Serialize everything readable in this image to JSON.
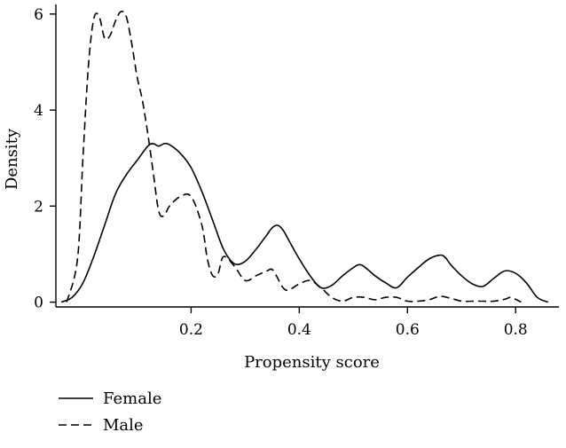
{
  "chart_data": {
    "type": "line",
    "title": "",
    "xlabel": "Propensity score",
    "ylabel": "Density",
    "xlim": [
      -0.05,
      0.88
    ],
    "ylim": [
      -0.1,
      6.2
    ],
    "x_ticks": [
      0.2,
      0.4,
      0.6,
      0.8
    ],
    "x_tick_labels": [
      "0.2",
      "0.4",
      "0.6",
      "0.8"
    ],
    "y_ticks": [
      0,
      2,
      4,
      6
    ],
    "y_tick_labels": [
      "0",
      "2",
      "4",
      "6"
    ],
    "grid": false,
    "legend_position": "bottom-left",
    "series": [
      {
        "name": "Female",
        "style": "solid",
        "color": "#000000",
        "x": [
          -0.04,
          -0.02,
          0.0,
          0.02,
          0.04,
          0.06,
          0.08,
          0.1,
          0.12,
          0.13,
          0.14,
          0.15,
          0.16,
          0.18,
          0.2,
          0.22,
          0.24,
          0.26,
          0.28,
          0.3,
          0.32,
          0.34,
          0.35,
          0.36,
          0.37,
          0.38,
          0.4,
          0.42,
          0.44,
          0.46,
          0.48,
          0.5,
          0.51,
          0.52,
          0.54,
          0.56,
          0.58,
          0.6,
          0.62,
          0.64,
          0.66,
          0.67,
          0.68,
          0.7,
          0.72,
          0.74,
          0.76,
          0.78,
          0.8,
          0.82,
          0.84,
          0.86
        ],
        "y": [
          0.0,
          0.1,
          0.4,
          0.95,
          1.6,
          2.25,
          2.65,
          2.95,
          3.25,
          3.3,
          3.25,
          3.3,
          3.28,
          3.1,
          2.8,
          2.3,
          1.7,
          1.1,
          0.8,
          0.85,
          1.1,
          1.4,
          1.55,
          1.6,
          1.5,
          1.3,
          0.9,
          0.55,
          0.3,
          0.35,
          0.55,
          0.72,
          0.78,
          0.74,
          0.55,
          0.4,
          0.3,
          0.52,
          0.72,
          0.9,
          0.98,
          0.93,
          0.78,
          0.55,
          0.38,
          0.33,
          0.5,
          0.65,
          0.6,
          0.4,
          0.1,
          0.0
        ]
      },
      {
        "name": "Male",
        "style": "dashed",
        "color": "#000000",
        "x": [
          -0.03,
          -0.01,
          0.0,
          0.01,
          0.02,
          0.03,
          0.04,
          0.05,
          0.06,
          0.07,
          0.08,
          0.09,
          0.1,
          0.11,
          0.12,
          0.13,
          0.14,
          0.15,
          0.16,
          0.18,
          0.2,
          0.22,
          0.23,
          0.24,
          0.25,
          0.26,
          0.28,
          0.3,
          0.32,
          0.34,
          0.35,
          0.36,
          0.37,
          0.38,
          0.4,
          0.42,
          0.44,
          0.46,
          0.48,
          0.5,
          0.52,
          0.54,
          0.56,
          0.58,
          0.6,
          0.62,
          0.64,
          0.66,
          0.68,
          0.7,
          0.72,
          0.74,
          0.76,
          0.78,
          0.79,
          0.8,
          0.81
        ],
        "y": [
          0.0,
          0.9,
          3.0,
          4.9,
          5.9,
          5.95,
          5.5,
          5.55,
          5.85,
          6.05,
          5.95,
          5.4,
          4.7,
          4.2,
          3.5,
          2.7,
          1.9,
          1.8,
          2.0,
          2.2,
          2.2,
          1.6,
          0.9,
          0.55,
          0.6,
          0.95,
          0.75,
          0.45,
          0.55,
          0.65,
          0.68,
          0.5,
          0.3,
          0.25,
          0.38,
          0.45,
          0.3,
          0.1,
          0.02,
          0.1,
          0.1,
          0.05,
          0.1,
          0.1,
          0.02,
          0.02,
          0.05,
          0.12,
          0.08,
          0.02,
          0.02,
          0.02,
          0.02,
          0.06,
          0.1,
          0.06,
          0.0
        ]
      }
    ]
  }
}
